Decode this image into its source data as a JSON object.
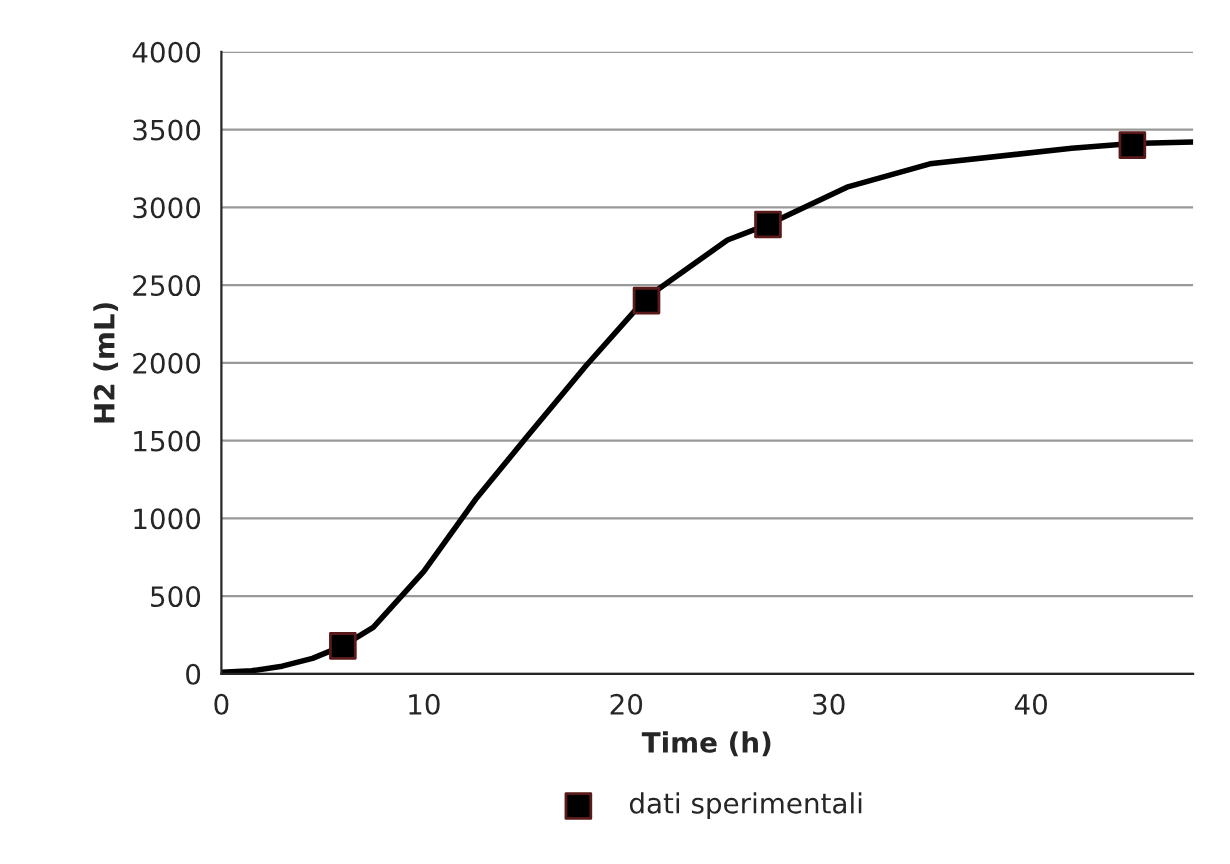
{
  "chart_data": {
    "type": "line",
    "xlabel": "Time (h)",
    "ylabel": "H2 (mL)",
    "xlim": [
      0,
      48
    ],
    "xticks": [
      0,
      10,
      20,
      30,
      40
    ],
    "ylim": [
      0,
      4000
    ],
    "yticks": [
      0,
      500,
      1000,
      1500,
      2000,
      2500,
      3000,
      3500,
      4000
    ],
    "grid": "y",
    "legend": "bottom",
    "series": [
      {
        "color": "#000000",
        "marker": "none",
        "x": [
          0,
          1.5,
          3,
          4.5,
          6,
          7.5,
          10,
          12.6,
          15,
          18,
          21,
          25,
          27,
          30.9,
          35,
          42,
          45,
          48
        ],
        "values": [
          10,
          20,
          50,
          100,
          180,
          300,
          660,
          1130,
          1510,
          1980,
          2420,
          2790,
          2890,
          3130,
          3280,
          3380,
          3410,
          3420
        ]
      },
      {
        "type": "scatter",
        "name": "dati sperimentali",
        "color": "#000000",
        "marker": "square",
        "x": [
          6,
          21,
          27,
          45
        ],
        "values": [
          180,
          2400,
          2890,
          3400
        ]
      }
    ]
  }
}
